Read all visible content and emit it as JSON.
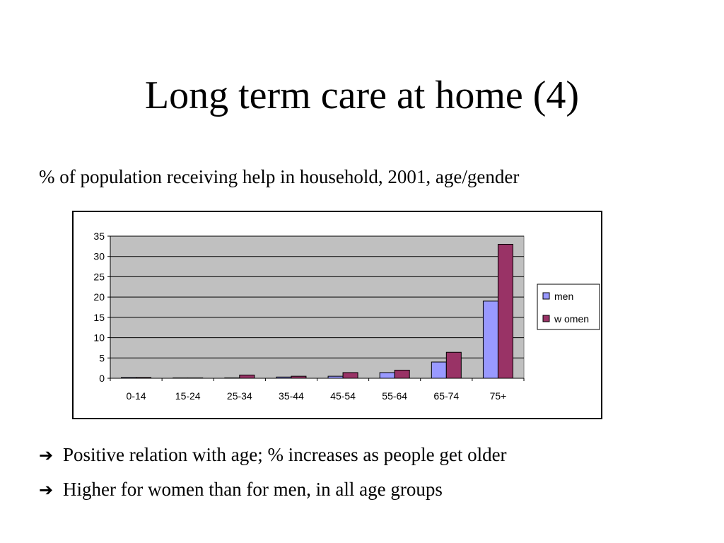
{
  "slide": {
    "title": "Long term care at home (4)",
    "subtitle": "% of population receiving help in household, 2001, age/gender",
    "bullets": [
      {
        "icon": "arrow-right-icon",
        "text": "Positive relation with age; % increases as people get older"
      },
      {
        "icon": "arrow-right-icon",
        "text": "Higher for women than for men, in all age groups"
      }
    ]
  },
  "chart_data": {
    "type": "bar",
    "title": "",
    "xlabel": "",
    "ylabel": "",
    "categories": [
      "0-14",
      "15-24",
      "25-34",
      "35-44",
      "45-54",
      "55-64",
      "65-74",
      "75+"
    ],
    "series": [
      {
        "name": "men",
        "values": [
          0.2,
          0.1,
          0.1,
          0.3,
          0.5,
          1.4,
          4.0,
          19.0
        ],
        "color": "#9999FF"
      },
      {
        "name": "w omen",
        "values": [
          0.2,
          0.1,
          0.8,
          0.5,
          1.4,
          2.0,
          6.4,
          33.0
        ],
        "color": "#993366"
      }
    ],
    "ylim": [
      0,
      35
    ],
    "yticks": [
      0,
      5,
      10,
      15,
      20,
      25,
      30,
      35
    ],
    "grid": true,
    "plot_background": "#C0C0C0",
    "legend": "right"
  }
}
